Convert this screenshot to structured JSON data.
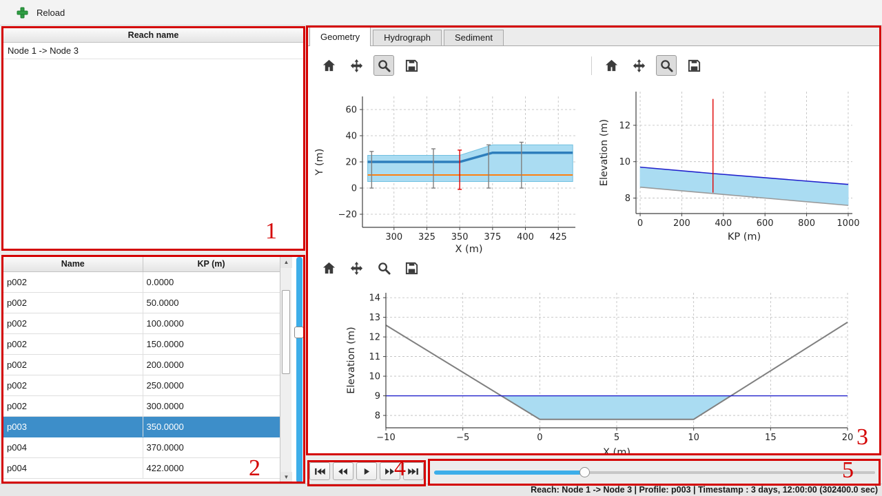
{
  "window": {
    "toolbar": {
      "reload_label": "Reload"
    }
  },
  "status_bar": {
    "text": "Reach: Node 1 -> Node 3 | Profile: p003 | Timestamp : 3 days, 12:00:00 (302400.0 sec)"
  },
  "reach_panel": {
    "header": "Reach name",
    "items": [
      "Node 1 -> Node 3"
    ]
  },
  "profile_table": {
    "columns": [
      "Name",
      "KP (m)"
    ],
    "selected_index": 7,
    "rows": [
      [
        "p002",
        "0.0000"
      ],
      [
        "p002",
        "50.0000"
      ],
      [
        "p002",
        "100.0000"
      ],
      [
        "p002",
        "150.0000"
      ],
      [
        "p002",
        "200.0000"
      ],
      [
        "p002",
        "250.0000"
      ],
      [
        "p002",
        "300.0000"
      ],
      [
        "p003",
        "350.0000"
      ],
      [
        "p004",
        "370.0000"
      ],
      [
        "p004",
        "422.0000"
      ]
    ]
  },
  "tabs": {
    "items": [
      {
        "label": "Geometry",
        "active": true
      },
      {
        "label": "Hydrograph",
        "active": false
      },
      {
        "label": "Sediment",
        "active": false
      }
    ]
  },
  "mpl_toolbars": [
    {
      "buttons": [
        "home",
        "pan",
        "zoom",
        "save"
      ],
      "active": "zoom"
    },
    {
      "buttons": [
        "home",
        "pan",
        "zoom",
        "save"
      ],
      "active": "zoom"
    },
    {
      "buttons": [
        "home",
        "pan",
        "zoom",
        "save"
      ],
      "active": null
    }
  ],
  "playback": {
    "buttons": [
      {
        "name": "skip-to-start"
      },
      {
        "name": "step-backward"
      },
      {
        "name": "play"
      },
      {
        "name": "step-forward"
      },
      {
        "name": "skip-to-end"
      }
    ],
    "slider": {
      "value_percent": 34
    }
  },
  "annotations": {
    "regions": [
      {
        "label": "1"
      },
      {
        "label": "2"
      },
      {
        "label": "3"
      },
      {
        "label": "4"
      },
      {
        "label": "5"
      }
    ]
  },
  "colors": {
    "selection": "#3d8ec9",
    "slider_fill": "#3daee9",
    "annotation": "#d40000",
    "reload_green": "#2f9e44"
  },
  "chart_data": [
    {
      "id": "plan-view",
      "type": "line",
      "title": "",
      "xlabel": "X (m)",
      "ylabel": "Y (m)",
      "xlim": [
        276,
        438
      ],
      "ylim": [
        -30,
        70
      ],
      "xticks": [
        300,
        325,
        350,
        375,
        400,
        425
      ],
      "yticks": [
        -20,
        0,
        20,
        40,
        60
      ],
      "grid": true,
      "layout": {
        "l": 78,
        "r": 28,
        "t": 25,
        "b": 38,
        "xlabel_dy": 36,
        "ylabel_x": 20
      },
      "bands": [
        {
          "name": "channel-band",
          "x": [
            280,
            350,
            375,
            436
          ],
          "low": [
            5,
            5,
            5,
            5
          ],
          "high": [
            25,
            25,
            33,
            33
          ],
          "fill": "#aadcf2",
          "edge": "#70c0e0"
        }
      ],
      "series": [
        {
          "name": "bank-line",
          "x": [
            280,
            350,
            375,
            436
          ],
          "y": [
            20,
            20,
            27,
            27
          ],
          "color": "#2e7ebc",
          "width": 3.5
        },
        {
          "name": "axis-line",
          "x": [
            280,
            436
          ],
          "y": [
            10,
            10
          ],
          "color": "#ff7f0e",
          "width": 2
        }
      ],
      "vlines": [
        {
          "x": 283,
          "y0": 0,
          "y1": 28,
          "color": "#7f7f7f"
        },
        {
          "x": 330,
          "y0": 0,
          "y1": 30,
          "color": "#7f7f7f"
        },
        {
          "x": 350,
          "y0": -1,
          "y1": 29,
          "color": "#e00000"
        },
        {
          "x": 372,
          "y0": 0,
          "y1": 33,
          "color": "#7f7f7f"
        },
        {
          "x": 397,
          "y0": 0,
          "y1": 35,
          "color": "#7f7f7f"
        }
      ]
    },
    {
      "id": "long-profile",
      "type": "line",
      "title": "",
      "xlabel": "KP (m)",
      "ylabel": "Elevation (m)",
      "xlim": [
        -20,
        1020
      ],
      "ylim": [
        7.15,
        13.85
      ],
      "xticks": [
        0,
        200,
        400,
        600,
        800,
        1000
      ],
      "yticks": [
        8,
        10,
        12
      ],
      "grid": true,
      "layout": {
        "l": 58,
        "r": 38,
        "t": 18,
        "b": 55,
        "xlabel_dy": 38,
        "ylabel_x": 16
      },
      "bands": [
        {
          "name": "water-band",
          "x": [
            0,
            350,
            1000
          ],
          "low": [
            8.6,
            8.25,
            7.6
          ],
          "high": [
            9.7,
            9.35,
            8.75
          ],
          "fill": "#aadcf2",
          "edge": "#aadcf2"
        }
      ],
      "series": [
        {
          "name": "water-surface",
          "x": [
            0,
            350,
            1000
          ],
          "y": [
            9.7,
            9.35,
            8.75
          ],
          "color": "#2020cc",
          "width": 1.6
        },
        {
          "name": "bed-profile",
          "x": [
            0,
            350,
            1000
          ],
          "y": [
            8.6,
            8.25,
            7.6
          ],
          "color": "#9a9a9a",
          "width": 1.6
        }
      ],
      "vlines": [
        {
          "x": 350,
          "y0": 8.3,
          "y1": 13.45,
          "color": "#e00000",
          "caps": false
        }
      ]
    },
    {
      "id": "cross-section",
      "type": "line",
      "title": "",
      "xlabel": "X (m)",
      "ylabel": "Elevation (m)",
      "xlim": [
        -10,
        20
      ],
      "ylim": [
        7.37,
        14.25
      ],
      "xticks": [
        -10,
        -5,
        0,
        5,
        10,
        15,
        20
      ],
      "yticks": [
        8,
        9,
        10,
        11,
        12,
        13,
        14
      ],
      "grid": true,
      "layout": {
        "l": 112,
        "r": 45,
        "t": 15,
        "b": 39,
        "xlabel_dy": 40,
        "ylabel_x": 66
      },
      "bands": [
        {
          "name": "water-area",
          "x": [
            -2.5,
            0,
            10,
            12.42
          ],
          "low": [
            9,
            7.8,
            7.8,
            9
          ],
          "high": [
            9,
            9,
            9,
            9
          ],
          "fill": "#aadcf2",
          "edge": "#aadcf2"
        }
      ],
      "series": [
        {
          "name": "ground-line",
          "x": [
            -10,
            0,
            10,
            20
          ],
          "y": [
            12.6,
            7.8,
            7.8,
            12.75
          ],
          "color": "#808080",
          "width": 2
        },
        {
          "name": "water-level",
          "x": [
            -10,
            20
          ],
          "y": [
            9,
            9
          ],
          "color": "#2020cc",
          "width": 1.4
        }
      ],
      "vlines": []
    }
  ]
}
